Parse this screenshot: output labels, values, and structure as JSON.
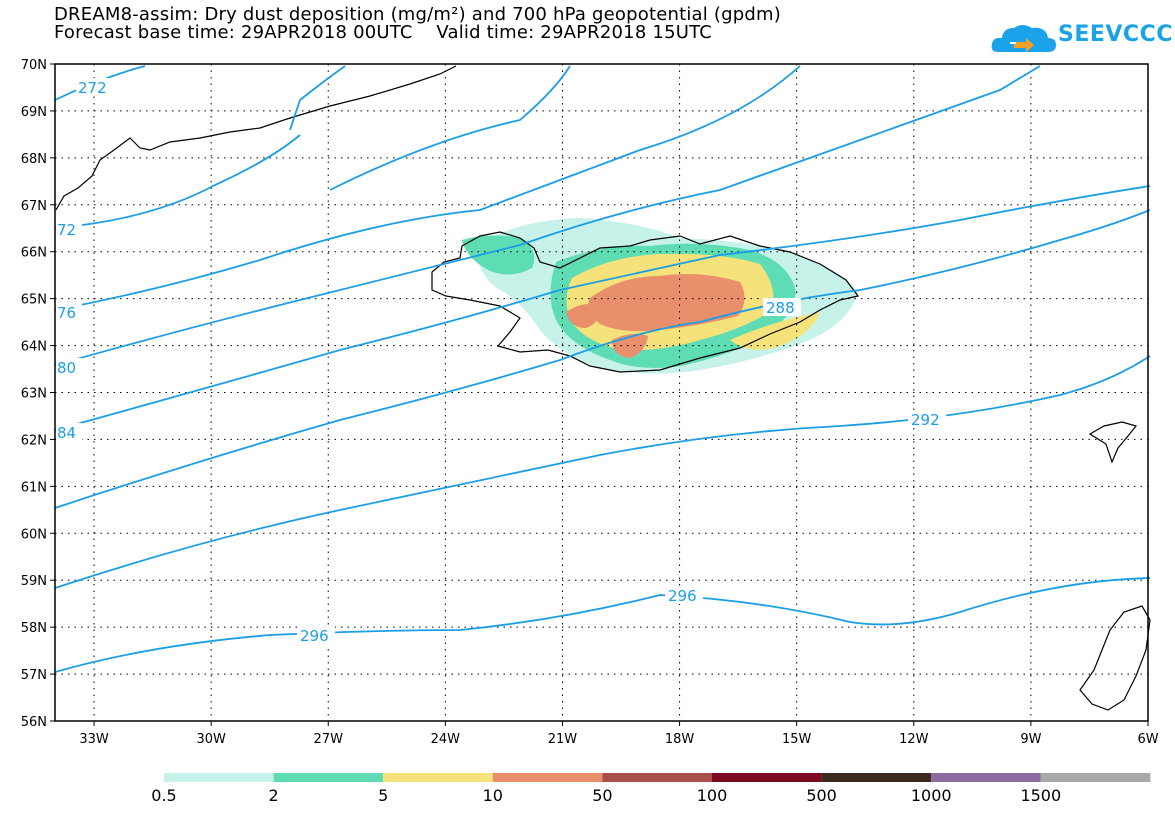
{
  "title": {
    "line1": "DREAM8-assim: Dry dust deposition (mg/m²) and 700 hPa geopotential (gpdm)",
    "line2": "Forecast base time: 29APR2018 00UTC    Valid time: 29APR2018 15UTC"
  },
  "logo": {
    "text": "SEEVCCC",
    "icon": "cloud-arrow-icon",
    "color": "#1aa3e8"
  },
  "map": {
    "lon_range": [
      -34,
      -6
    ],
    "lat_range": [
      56,
      70
    ],
    "lon_ticks": [
      "33W",
      "30W",
      "27W",
      "24W",
      "21W",
      "18W",
      "15W",
      "12W",
      "9W",
      "6W"
    ],
    "lat_ticks": [
      "56N",
      "57N",
      "58N",
      "59N",
      "60N",
      "61N",
      "62N",
      "63N",
      "64N",
      "65N",
      "66N",
      "67N",
      "68N",
      "69N",
      "70N"
    ],
    "grid": "dotted",
    "contour_color": "#1b9ee6",
    "contour_labels": [
      "272",
      "72",
      "76",
      "80",
      "84",
      "288",
      "292",
      "296",
      "296"
    ],
    "region": "Iceland"
  },
  "legend": {
    "thresholds": [
      "0.5",
      "2",
      "5",
      "10",
      "50",
      "100",
      "500",
      "1000",
      "1500"
    ],
    "colors": [
      "#c6f2ea",
      "#5edcb4",
      "#f5e27a",
      "#e98f6b",
      "#a84f4a",
      "#7c0b22",
      "#3a2a1f",
      "#8d6a9e",
      "#a8a8a8"
    ]
  }
}
